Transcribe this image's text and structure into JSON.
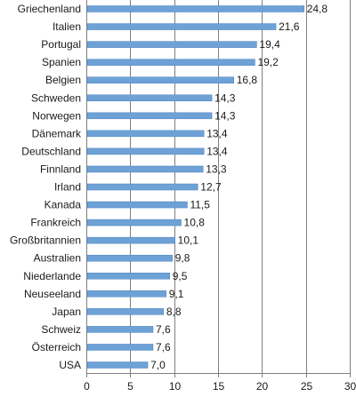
{
  "chart_data": {
    "type": "bar",
    "orientation": "horizontal",
    "categories": [
      "Griechenland",
      "Italien",
      "Portugal",
      "Spanien",
      "Belgien",
      "Schweden",
      "Norwegen",
      "Dänemark",
      "Deutschland",
      "Finnland",
      "Irland",
      "Kanada",
      "Frankreich",
      "Großbritannien",
      "Australien",
      "Niederlande",
      "Neuseeland",
      "Japan",
      "Schweiz",
      "Österreich",
      "USA"
    ],
    "values": [
      24.8,
      21.6,
      19.4,
      19.2,
      16.8,
      14.3,
      14.3,
      13.4,
      13.4,
      13.3,
      12.7,
      11.5,
      10.8,
      10.1,
      9.8,
      9.5,
      9.1,
      8.8,
      7.6,
      7.6,
      7.0
    ],
    "value_labels": [
      "24,8",
      "21,6",
      "19,4",
      "19,2",
      "16,8",
      "14,3",
      "14,3",
      "13,4",
      "13,4",
      "13,3",
      "12,7",
      "11,5",
      "10,8",
      "10,1",
      "9,8",
      "9,5",
      "9,1",
      "8,8",
      "7,6",
      "7,6",
      "7,0"
    ],
    "xticks": [
      0,
      5,
      10,
      15,
      20,
      25,
      30
    ],
    "xlim": [
      0,
      30
    ],
    "grid": "vertical",
    "legend": "none",
    "colors": {
      "bar": "#6ea1d6",
      "bar_edge": "#4f86c2",
      "grid": "#7f7f7f",
      "axis": "#7f7f7f",
      "text": "#1a1a1a"
    }
  }
}
